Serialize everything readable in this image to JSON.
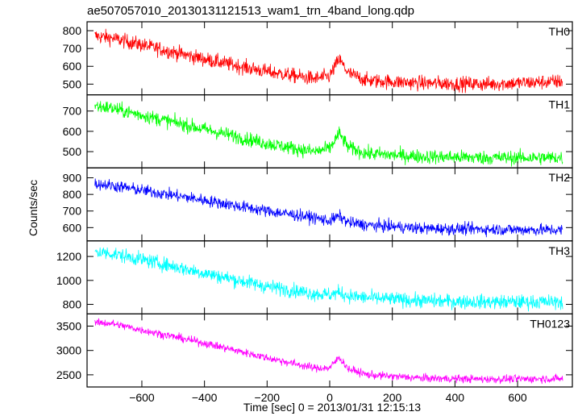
{
  "chart_data": {
    "type": "line",
    "title": "ae507057010_20130131121513_wam1_trn_4band_long.qdp",
    "xlabel": "Time [sec] 0 = 2013/01/31 12:15:13",
    "ylabel": "Counts/sec",
    "xlim": [
      -775,
      775
    ],
    "xticks": [
      -600,
      -400,
      -200,
      0,
      200,
      400,
      600
    ],
    "xtick_labels": [
      "−600",
      "−400",
      "−200",
      "0",
      "200",
      "400",
      "600"
    ],
    "panels": [
      {
        "name": "TH0",
        "color": "#ff0000",
        "ylim": [
          440,
          850
        ],
        "yticks": [
          500,
          600,
          700,
          800
        ],
        "noise": 38,
        "trend": [
          [
            -750,
            770
          ],
          [
            -700,
            760
          ],
          [
            -600,
            720
          ],
          [
            -400,
            640
          ],
          [
            -200,
            570
          ],
          [
            -50,
            530
          ],
          [
            0,
            545
          ],
          [
            30,
            640
          ],
          [
            60,
            560
          ],
          [
            120,
            520
          ],
          [
            300,
            505
          ],
          [
            500,
            500
          ],
          [
            740,
            515
          ]
        ]
      },
      {
        "name": "TH1",
        "color": "#00ff00",
        "ylim": [
          420,
          780
        ],
        "yticks": [
          500,
          600,
          700
        ],
        "noise": 32,
        "trend": [
          [
            -750,
            725
          ],
          [
            -700,
            715
          ],
          [
            -600,
            680
          ],
          [
            -400,
            610
          ],
          [
            -200,
            540
          ],
          [
            -50,
            500
          ],
          [
            0,
            515
          ],
          [
            30,
            590
          ],
          [
            60,
            520
          ],
          [
            120,
            490
          ],
          [
            300,
            475
          ],
          [
            500,
            470
          ],
          [
            740,
            470
          ]
        ]
      },
      {
        "name": "TH2",
        "color": "#0000ff",
        "ylim": [
          520,
          960
        ],
        "yticks": [
          600,
          700,
          800,
          900
        ],
        "noise": 33,
        "trend": [
          [
            -750,
            865
          ],
          [
            -700,
            855
          ],
          [
            -600,
            825
          ],
          [
            -400,
            765
          ],
          [
            -200,
            700
          ],
          [
            -50,
            660
          ],
          [
            0,
            640
          ],
          [
            30,
            670
          ],
          [
            60,
            630
          ],
          [
            120,
            615
          ],
          [
            300,
            595
          ],
          [
            500,
            590
          ],
          [
            740,
            585
          ]
        ]
      },
      {
        "name": "TH3",
        "color": "#00ffff",
        "ylim": [
          720,
          1330
        ],
        "yticks": [
          800,
          1000,
          1200
        ],
        "noise": 55,
        "trend": [
          [
            -750,
            1240
          ],
          [
            -700,
            1225
          ],
          [
            -600,
            1175
          ],
          [
            -400,
            1060
          ],
          [
            -200,
            950
          ],
          [
            -50,
            890
          ],
          [
            0,
            880
          ],
          [
            30,
            900
          ],
          [
            60,
            870
          ],
          [
            120,
            855
          ],
          [
            300,
            830
          ],
          [
            500,
            820
          ],
          [
            740,
            820
          ]
        ]
      },
      {
        "name": "TH0123",
        "color": "#ff00ff",
        "ylim": [
          2250,
          3750
        ],
        "yticks": [
          2500,
          3000,
          3500
        ],
        "noise": 75,
        "trend": [
          [
            -750,
            3570
          ],
          [
            -700,
            3560
          ],
          [
            -600,
            3420
          ],
          [
            -400,
            3150
          ],
          [
            -200,
            2850
          ],
          [
            -50,
            2640
          ],
          [
            0,
            2640
          ],
          [
            30,
            2860
          ],
          [
            60,
            2620
          ],
          [
            120,
            2500
          ],
          [
            300,
            2430
          ],
          [
            500,
            2410
          ],
          [
            740,
            2420
          ]
        ]
      }
    ]
  }
}
